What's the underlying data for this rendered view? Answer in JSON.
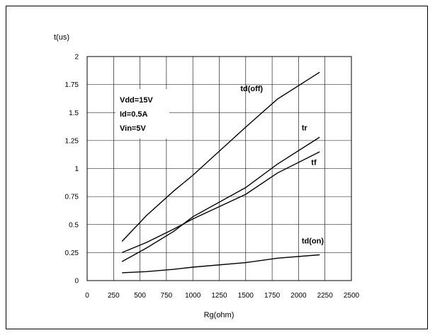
{
  "chart_data": {
    "type": "line",
    "xlabel": "Rg(ohm)",
    "ylabel": "t(us)",
    "xlim": [
      0,
      2500
    ],
    "ylim": [
      0,
      2
    ],
    "xticks": [
      0,
      250,
      500,
      750,
      1000,
      1250,
      1500,
      1750,
      2000,
      2250,
      2500
    ],
    "yticks": [
      0,
      0.25,
      0.5,
      0.75,
      1,
      1.25,
      1.5,
      1.75,
      2
    ],
    "xtick_labels": [
      "0",
      "250",
      "500",
      "750",
      "1000",
      "1250",
      "1500",
      "1750",
      "2000",
      "2250",
      "2500"
    ],
    "ytick_labels": [
      "0",
      "0.25",
      "0.5",
      "0.75",
      "1",
      "1.25",
      "1.5",
      "1.75",
      "2"
    ],
    "grid": true,
    "conditions": [
      "Vdd=15V",
      "Id=0.5A",
      "Vin=5V"
    ],
    "series": [
      {
        "name": "td(off)",
        "x": [
          330,
          560,
          820,
          1000,
          1500,
          1800,
          2200
        ],
        "y": [
          0.35,
          0.58,
          0.8,
          0.94,
          1.37,
          1.62,
          1.86
        ]
      },
      {
        "name": "tr",
        "x": [
          330,
          560,
          820,
          1000,
          1500,
          1800,
          2200
        ],
        "y": [
          0.17,
          0.29,
          0.44,
          0.57,
          0.83,
          1.04,
          1.28
        ]
      },
      {
        "name": "tf",
        "x": [
          330,
          560,
          820,
          1000,
          1500,
          1800,
          2200
        ],
        "y": [
          0.25,
          0.34,
          0.46,
          0.55,
          0.77,
          0.96,
          1.15
        ]
      },
      {
        "name": "td(on)",
        "x": [
          330,
          560,
          820,
          1000,
          1500,
          1800,
          2200
        ],
        "y": [
          0.07,
          0.08,
          0.1,
          0.12,
          0.16,
          0.2,
          0.23
        ]
      }
    ]
  }
}
